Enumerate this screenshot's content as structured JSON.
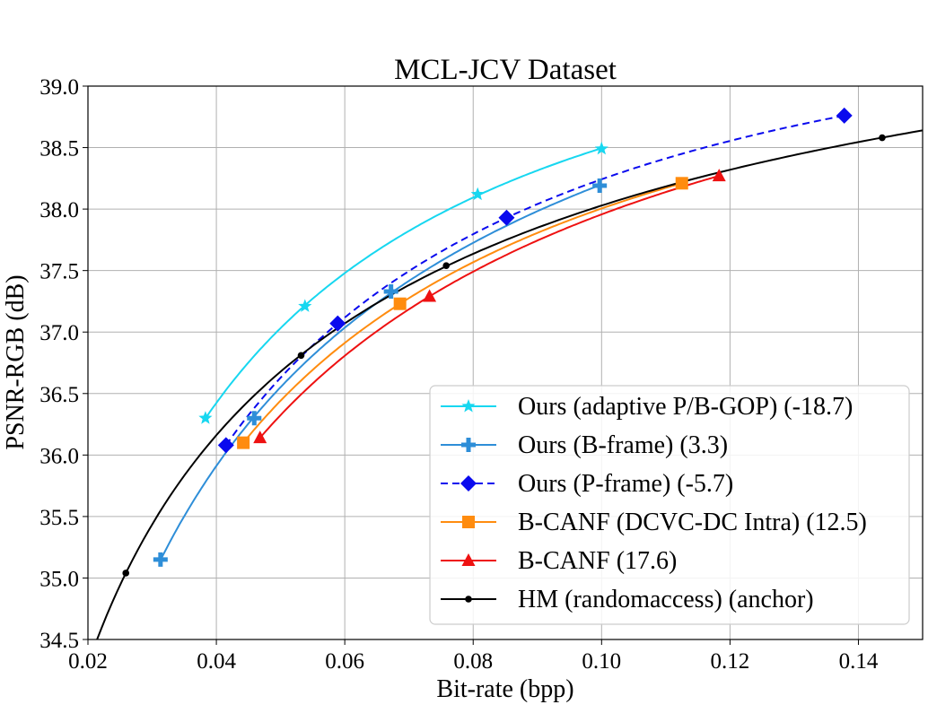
{
  "chart_data": {
    "type": "line",
    "title": "MCL-JCV Dataset",
    "xlabel": "Bit-rate (bpp)",
    "ylabel": "PSNR-RGB (dB)",
    "xlim": [
      0.02,
      0.15
    ],
    "ylim": [
      34.5,
      39.0
    ],
    "xticks": [
      "0.02",
      "0.04",
      "0.06",
      "0.08",
      "0.10",
      "0.12",
      "0.14"
    ],
    "xtick_values": [
      0.02,
      0.04,
      0.06,
      0.08,
      0.1,
      0.12,
      0.14
    ],
    "yticks": [
      "34.5",
      "35.0",
      "35.5",
      "36.0",
      "36.5",
      "37.0",
      "37.5",
      "38.0",
      "38.5",
      "39.0"
    ],
    "ytick_values": [
      34.5,
      35.0,
      35.5,
      36.0,
      36.5,
      37.0,
      37.5,
      38.0,
      38.5,
      39.0
    ],
    "grid": true,
    "legend_position": "lower-right",
    "series": [
      {
        "name": "Ours (adaptive P/B-GOP) (-18.7)",
        "color": "#17d7f0",
        "marker": "star",
        "dashed": false,
        "x": [
          0.0383,
          0.0538,
          0.0807,
          0.1
        ],
        "y": [
          36.3,
          37.21,
          38.12,
          38.49
        ]
      },
      {
        "name": "Ours (B-frame) (3.3)",
        "color": "#2e8ed8",
        "marker": "plus",
        "dashed": false,
        "x": [
          0.0313,
          0.0459,
          0.0672,
          0.0997
        ],
        "y": [
          35.15,
          36.3,
          37.33,
          38.19
        ]
      },
      {
        "name": "Ours (P-frame) (-5.7)",
        "color": "#0a0aee",
        "marker": "diamond",
        "dashed": true,
        "x": [
          0.0415,
          0.0589,
          0.0852,
          0.1378
        ],
        "y": [
          36.08,
          37.07,
          37.93,
          38.76
        ]
      },
      {
        "name": "B-CANF (DCVC-DC Intra) (12.5)",
        "color": "#ff8c0f",
        "marker": "square",
        "dashed": false,
        "x": [
          0.0442,
          0.0686,
          0.1125
        ],
        "y": [
          36.1,
          37.23,
          38.21
        ]
      },
      {
        "name": "B-CANF (17.6)",
        "color": "#ee1111",
        "marker": "triangle",
        "dashed": false,
        "x": [
          0.0468,
          0.0732,
          0.1183
        ],
        "y": [
          36.14,
          37.29,
          38.27
        ]
      },
      {
        "name": "HM (randomaccess) (anchor)",
        "color": "#000000",
        "marker": "dot",
        "dashed": false,
        "x": [
          0.0259,
          0.0532,
          0.0758,
          0.1437
        ],
        "y": [
          35.04,
          36.81,
          37.54,
          38.58
        ]
      }
    ]
  }
}
